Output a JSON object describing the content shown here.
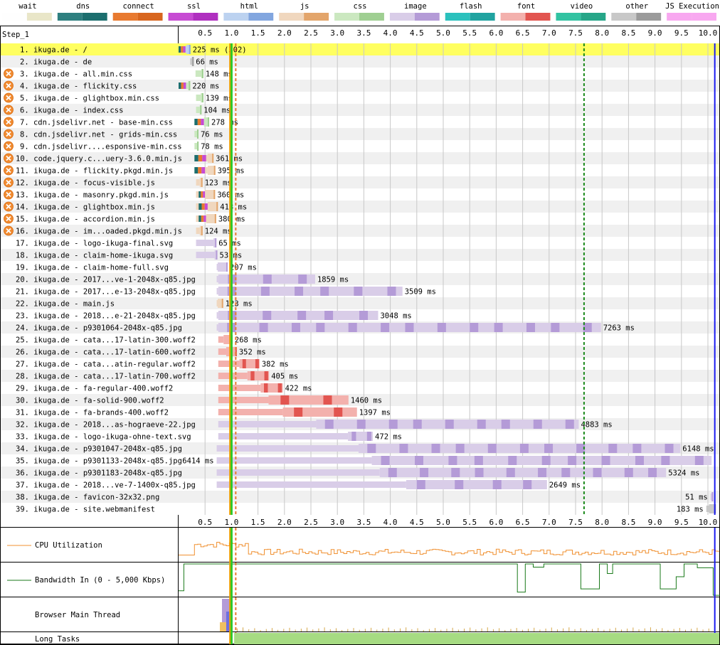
{
  "legend": [
    {
      "name": "wait",
      "colors": [
        "#fefefe",
        "#e9e6c8"
      ]
    },
    {
      "name": "dns",
      "colors": [
        "#2e7f7f",
        "#1c6e6e"
      ]
    },
    {
      "name": "connect",
      "colors": [
        "#e87a30",
        "#d8661e"
      ]
    },
    {
      "name": "ssl",
      "colors": [
        "#c74bd3",
        "#b030c0"
      ]
    },
    {
      "name": "html",
      "colors": [
        "#bcd2f0",
        "#82a6df"
      ]
    },
    {
      "name": "js",
      "colors": [
        "#f0d7be",
        "#e3a56b"
      ]
    },
    {
      "name": "css",
      "colors": [
        "#cbe8c0",
        "#9fcf92"
      ]
    },
    {
      "name": "image",
      "colors": [
        "#d9cde8",
        "#b49bd7"
      ]
    },
    {
      "name": "flash",
      "colors": [
        "#2bc1bd",
        "#20a3a0"
      ]
    },
    {
      "name": "font",
      "colors": [
        "#f3b1ad",
        "#e25550"
      ]
    },
    {
      "name": "video",
      "colors": [
        "#32c3a2",
        "#26a688"
      ]
    },
    {
      "name": "other",
      "colors": [
        "#c8c8c8",
        "#9b9b9b"
      ]
    },
    {
      "name": "JS Execution",
      "colors": [
        "#f8a8f0",
        "#f8a8f0"
      ]
    }
  ],
  "step_label": "Step_1",
  "rows": [
    {
      "n": "1.",
      "label": "ikuga.de - /",
      "type": "html",
      "start": 0.0,
      "dl": 0.15,
      "end": 0.225,
      "ms": "225 ms (302)",
      "conn": [
        0.0,
        0.13
      ],
      "warn": false,
      "hl": true
    },
    {
      "n": "2.",
      "label": "ikuga.de - de",
      "type": "other",
      "start": 0.22,
      "dl": 0.25,
      "end": 0.286,
      "ms": "66 ms",
      "warn": false
    },
    {
      "n": "3.",
      "label": "ikuga.de - all.min.css",
      "type": "css",
      "start": 0.32,
      "dl": 0.43,
      "end": 0.468,
      "ms": "148 ms",
      "warn": true
    },
    {
      "n": "4.",
      "label": "ikuga.de - flickity.css",
      "type": "css",
      "start": 0.0,
      "dl": 0.18,
      "end": 0.22,
      "ms": "220 ms",
      "conn": [
        0.0,
        0.14
      ],
      "warn": true
    },
    {
      "n": "5.",
      "label": "ikuga.de - glightbox.min.css",
      "type": "css",
      "start": 0.33,
      "dl": 0.42,
      "end": 0.469,
      "ms": "139 ms",
      "warn": true
    },
    {
      "n": "6.",
      "label": "ikuga.de - index.css",
      "type": "css",
      "start": 0.33,
      "dl": 0.4,
      "end": 0.434,
      "ms": "104 ms",
      "warn": true
    },
    {
      "n": "7.",
      "label": "cdn.jsdelivr.net - base-min.css",
      "type": "css",
      "start": 0.3,
      "dl": 0.48,
      "end": 0.578,
      "ms": "278 ms",
      "conn": [
        0.3,
        0.48
      ],
      "warn": true
    },
    {
      "n": "8.",
      "label": "cdn.jsdelivr.net - grids-min.css",
      "type": "css",
      "start": 0.3,
      "dl": 0.35,
      "end": 0.376,
      "ms": "76 ms",
      "warn": true
    },
    {
      "n": "9.",
      "label": "cdn.jsdelivr....esponsive-min.css",
      "type": "css",
      "start": 0.3,
      "dl": 0.35,
      "end": 0.378,
      "ms": "78 ms",
      "warn": true
    },
    {
      "n": "10.",
      "label": "code.jquery.c...uery-3.6.0.min.js",
      "type": "js",
      "start": 0.3,
      "dl": 0.55,
      "end": 0.661,
      "ms": "361 ms",
      "conn": [
        0.3,
        0.52
      ],
      "warn": true
    },
    {
      "n": "11.",
      "label": "ikuga.de - flickity.pkgd.min.js",
      "type": "js",
      "start": 0.3,
      "dl": 0.55,
      "end": 0.695,
      "ms": "395 ms",
      "conn": [
        0.3,
        0.5
      ],
      "warn": true
    },
    {
      "n": "12.",
      "label": "ikuga.de - focus-visible.js",
      "type": "js",
      "start": 0.33,
      "dl": 0.4,
      "end": 0.453,
      "ms": "123 ms",
      "warn": true
    },
    {
      "n": "13.",
      "label": "ikuga.de - masonry.pkgd.min.js",
      "type": "js",
      "start": 0.33,
      "dl": 0.5,
      "end": 0.69,
      "ms": "360 ms",
      "conn": [
        0.38,
        0.5
      ],
      "warn": true
    },
    {
      "n": "14.",
      "label": "ikuga.de - glightbox.min.js",
      "type": "js",
      "start": 0.33,
      "dl": 0.55,
      "end": 0.743,
      "ms": "413 ms",
      "conn": [
        0.38,
        0.55
      ],
      "warn": true
    },
    {
      "n": "15.",
      "label": "ikuga.de - accordion.min.js",
      "type": "js",
      "start": 0.33,
      "dl": 0.52,
      "end": 0.71,
      "ms": "380 ms",
      "conn": [
        0.38,
        0.52
      ],
      "warn": true
    },
    {
      "n": "16.",
      "label": "ikuga.de - im...oaded.pkgd.min.js",
      "type": "js",
      "start": 0.33,
      "dl": 0.4,
      "end": 0.454,
      "ms": "124 ms",
      "warn": true
    },
    {
      "n": "17.",
      "label": "ikuga.de - logo-ikuga-final.svg",
      "type": "image",
      "start": 0.33,
      "dl": 0.66,
      "end": 0.715,
      "ms": "65 ms",
      "warn": false
    },
    {
      "n": "18.",
      "label": "ikuga.de - claim-home-ikuga.svg",
      "type": "image",
      "start": 0.33,
      "dl": 0.68,
      "end": 0.733,
      "ms": "53 ms",
      "warn": false
    },
    {
      "n": "19.",
      "label": "ikuga.de - claim-home-full.svg",
      "type": "image",
      "start": 0.72,
      "dl": 0.74,
      "end": 0.927,
      "ms": "207 ms",
      "warn": false
    },
    {
      "n": "20.",
      "label": "ikuga.de - 2017...ve-1-2048x-q85.jpg",
      "type": "image",
      "start": 0.72,
      "dl": 0.75,
      "end": 2.58,
      "ms": "1859 ms",
      "warn": false
    },
    {
      "n": "21.",
      "label": "ikuga.de - 2017...e-13-2048x-q85.jpg",
      "type": "image",
      "start": 0.72,
      "dl": 0.75,
      "end": 4.23,
      "ms": "3509 ms",
      "warn": false
    },
    {
      "n": "22.",
      "label": "ikuga.de - main.js",
      "type": "js",
      "start": 0.72,
      "dl": 0.74,
      "end": 0.843,
      "ms": "123 ms",
      "warn": false
    },
    {
      "n": "23.",
      "label": "ikuga.de - 2018...e-21-2048x-q85.jpg",
      "type": "image",
      "start": 0.72,
      "dl": 0.75,
      "end": 3.77,
      "ms": "3048 ms",
      "warn": false
    },
    {
      "n": "24.",
      "label": "ikuga.de - p9301064-2048x-q85.jpg",
      "type": "image",
      "start": 0.72,
      "dl": 0.75,
      "end": 7.98,
      "ms": "7263 ms",
      "warn": false
    },
    {
      "n": "25.",
      "label": "ikuga.de - cata...17-latin-300.woff2",
      "type": "font",
      "start": 0.75,
      "dl": 0.85,
      "end": 1.02,
      "ms": "268 ms",
      "warn": false
    },
    {
      "n": "26.",
      "label": "ikuga.de - cata...17-latin-600.woff2",
      "type": "font",
      "start": 0.75,
      "dl": 0.9,
      "end": 1.1,
      "ms": "352 ms",
      "warn": false
    },
    {
      "n": "27.",
      "label": "ikuga.de - cata...atin-regular.woff2",
      "type": "font",
      "start": 0.75,
      "dl": 1.15,
      "end": 1.53,
      "ms": "382 ms",
      "warn": false
    },
    {
      "n": "28.",
      "label": "ikuga.de - cata...17-latin-700.woff2",
      "type": "font",
      "start": 0.75,
      "dl": 1.3,
      "end": 1.71,
      "ms": "405 ms",
      "warn": false
    },
    {
      "n": "29.",
      "label": "ikuga.de - fa-regular-400.woff2",
      "type": "font",
      "start": 0.75,
      "dl": 1.55,
      "end": 1.97,
      "ms": "422 ms",
      "warn": false
    },
    {
      "n": "30.",
      "label": "ikuga.de - fa-solid-900.woff2",
      "type": "font",
      "start": 0.75,
      "dl": 1.7,
      "end": 3.21,
      "ms": "1460 ms",
      "warn": false
    },
    {
      "n": "31.",
      "label": "ikuga.de - fa-brands-400.woff2",
      "type": "font",
      "start": 0.75,
      "dl": 1.97,
      "end": 3.37,
      "ms": "1397 ms",
      "warn": false
    },
    {
      "n": "32.",
      "label": "ikuga.de - 2018...as-hograeve-22.jpg",
      "type": "image",
      "start": 0.75,
      "dl": 2.6,
      "end": 7.56,
      "ms": "4883 ms",
      "warn": false
    },
    {
      "n": "33.",
      "label": "ikuga.de - logo-ikuga-ohne-text.svg",
      "type": "image",
      "start": 0.75,
      "dl": 3.2,
      "end": 3.67,
      "ms": "472 ms",
      "warn": false
    },
    {
      "n": "34.",
      "label": "ikuga.de - p9301047-2048x-q85.jpg",
      "type": "image",
      "start": 0.72,
      "dl": 3.4,
      "end": 9.48,
      "ms": "6148 ms",
      "warn": false
    },
    {
      "n": "35.",
      "label": "ikuga.de - p9301133-2048x-q85.jpg",
      "type": "image",
      "start": 0.72,
      "dl": 3.65,
      "end": 10.07,
      "ms": "6414 ms",
      "warn": false,
      "ms_left": true
    },
    {
      "n": "36.",
      "label": "ikuga.de - p9301183-2048x-q85.jpg",
      "type": "image",
      "start": 0.72,
      "dl": 3.8,
      "end": 9.21,
      "ms": "5324 ms",
      "warn": false
    },
    {
      "n": "37.",
      "label": "ikuga.de - 2018...ve-7-1400x-q85.jpg",
      "type": "image",
      "start": 0.72,
      "dl": 4.3,
      "end": 6.96,
      "ms": "2649 ms",
      "warn": false
    },
    {
      "n": "38.",
      "label": "ikuga.de - favicon-32x32.png",
      "type": "image",
      "start": 10.05,
      "dl": 10.07,
      "end": 10.1,
      "ms": "51 ms",
      "warn": false,
      "ms_left": true
    },
    {
      "n": "39.",
      "label": "ikuga.de - site.webmanifest",
      "type": "other",
      "start": 9.97,
      "dl": 10.02,
      "end": 10.15,
      "ms": "183 ms",
      "warn": false,
      "ms_left": true
    }
  ],
  "bottom": {
    "cpu_label": "CPU Utilization",
    "bw_label": "Bandwidth In (0 - 5,000 Kbps)",
    "main_thread_label": "Browser Main Thread",
    "long_tasks_label": "Long Tasks"
  },
  "chart_data": {
    "type": "waterfall",
    "xlabel": "",
    "ylabel": "",
    "x_ticks": [
      "0.5",
      "1.0",
      "1.5",
      "2.0",
      "2.5",
      "3.0",
      "3.5",
      "4.0",
      "4.5",
      "5.0",
      "5.5",
      "6.0",
      "6.5",
      "7.0",
      "7.5",
      "8.0",
      "8.5",
      "9.0",
      "9.5",
      "10.0"
    ],
    "xlim": [
      0,
      10.25
    ],
    "markers": [
      {
        "name": "start render",
        "x": 1.0,
        "color": "#28c828",
        "style": "solid"
      },
      {
        "name": "dom content loaded",
        "x": 0.97,
        "color": "#e8a000",
        "style": "solid"
      },
      {
        "name": "dom interactive",
        "x": 1.08,
        "color": "#e87a30",
        "style": "dashed"
      },
      {
        "name": "on load",
        "x": 7.66,
        "color": "#1a8a1a",
        "style": "dashed"
      },
      {
        "name": "document complete",
        "x": 10.13,
        "color": "#1a1af0",
        "style": "solid"
      }
    ],
    "bandwidth_kbps": {
      "x": [
        0.0,
        0.1,
        0.1,
        6.4,
        6.4,
        6.55,
        6.55,
        6.7,
        6.7,
        6.9,
        6.9,
        7.6,
        7.6,
        7.95,
        7.95,
        8.1,
        8.1,
        8.2,
        8.2,
        9.1,
        9.1,
        9.4,
        9.4,
        9.55,
        9.55,
        9.8,
        9.8,
        10.1,
        10.1,
        10.25
      ],
      "y": [
        800,
        800,
        5000,
        5000,
        600,
        600,
        5000,
        5000,
        4500,
        4500,
        5000,
        5000,
        1100,
        1100,
        5000,
        5000,
        3500,
        3500,
        5000,
        5000,
        1100,
        1100,
        3000,
        3000,
        5000,
        5000,
        4400,
        4400,
        100,
        100
      ]
    }
  }
}
